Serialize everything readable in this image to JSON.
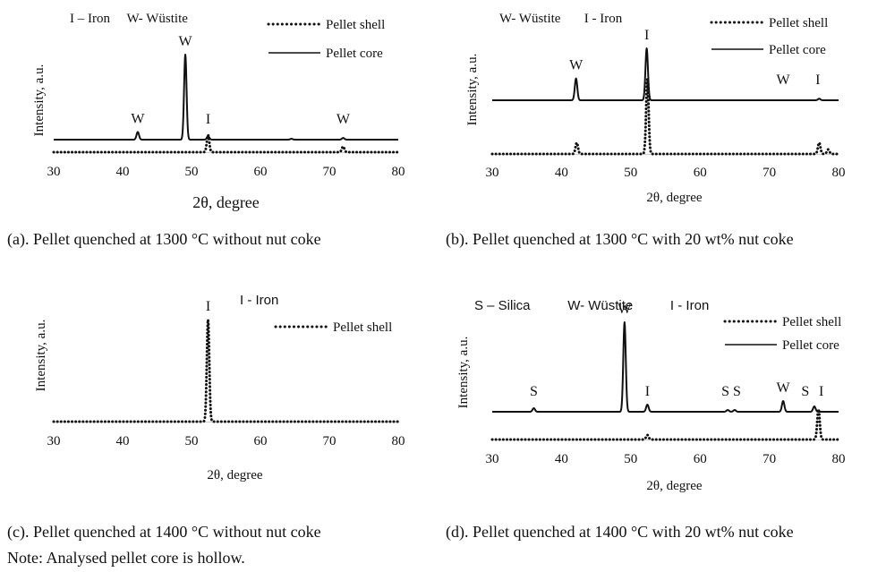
{
  "chart_data": [
    {
      "type": "line",
      "xlim": [
        30,
        80
      ],
      "xticks": [
        "30",
        "40",
        "50",
        "60",
        "70",
        "80"
      ],
      "xlabel": "2θ, degree",
      "ylabel": "Intensity, a.u.",
      "legend_text": "I – Iron     W- Wüstite",
      "legend": [
        "Pellet shell",
        "Pellet core"
      ],
      "legend_position": "top-right",
      "caption": "(a). Pellet quenched at 1300 °C without nut coke",
      "series": [
        {
          "name": "Pellet shell",
          "style": "dotted",
          "peaks": [
            {
              "x": 52.4,
              "h": 0.12
            },
            {
              "x": 72.0,
              "h": 0.04
            }
          ]
        },
        {
          "name": "Pellet core",
          "style": "solid",
          "peaks": [
            {
              "x": 42.2,
              "h": 0.09
            },
            {
              "x": 49.1,
              "h": 1.0
            },
            {
              "x": 52.4,
              "h": 0.04
            },
            {
              "x": 64.5,
              "h": 0.01
            },
            {
              "x": 72.0,
              "h": 0.02
            }
          ]
        }
      ],
      "annotations": [
        {
          "text": "W",
          "x": 42.2
        },
        {
          "text": "W",
          "x": 49.1
        },
        {
          "text": "I",
          "x": 52.4
        },
        {
          "text": "W",
          "x": 72.0
        }
      ]
    },
    {
      "type": "line",
      "xlim": [
        30,
        80
      ],
      "xticks": [
        "30",
        "40",
        "50",
        "60",
        "70",
        "80"
      ],
      "xlabel": "2θ, degree",
      "ylabel": "Intensity, a.u.",
      "legend_text": "W- Wüstite       I - Iron",
      "legend": [
        "Pellet shell",
        "Pellet core"
      ],
      "legend_position": "top-right",
      "caption": "(b). Pellet quenched at 1300 °C with 20 wt% nut coke",
      "series": [
        {
          "name": "Pellet shell",
          "style": "dotted",
          "peaks": [
            {
              "x": 42.2,
              "h": 0.15
            },
            {
              "x": 52.4,
              "h": 1.0
            },
            {
              "x": 77.2,
              "h": 0.15
            },
            {
              "x": 78.5,
              "h": 0.06
            }
          ]
        },
        {
          "name": "Pellet core",
          "style": "solid",
          "peaks": [
            {
              "x": 42.1,
              "h": 0.42
            },
            {
              "x": 52.3,
              "h": 1.0
            },
            {
              "x": 77.2,
              "h": 0.03
            }
          ]
        }
      ],
      "annotations": [
        {
          "text": "W",
          "x": 42.1
        },
        {
          "text": "I",
          "x": 52.3
        },
        {
          "text": "W",
          "x": 72.0
        },
        {
          "text": "I",
          "x": 77.0
        }
      ]
    },
    {
      "type": "line",
      "xlim": [
        30,
        80
      ],
      "xticks": [
        "30",
        "40",
        "50",
        "60",
        "70",
        "80"
      ],
      "xlabel": "2θ, degree",
      "ylabel": "Intensity, a.u.",
      "legend_text": "I - Iron",
      "legend": [
        "Pellet shell"
      ],
      "legend_position": "top-right",
      "caption": "(c). Pellet quenched at 1400 °C without nut coke",
      "series": [
        {
          "name": "Pellet shell",
          "style": "dotted",
          "peaks": [
            {
              "x": 52.4,
              "h": 1.0
            }
          ]
        }
      ],
      "annotations": [
        {
          "text": "I",
          "x": 52.4
        }
      ]
    },
    {
      "type": "line",
      "xlim": [
        30,
        80
      ],
      "xticks": [
        "30",
        "40",
        "50",
        "60",
        "70",
        "80"
      ],
      "xlabel": "2θ, degree",
      "ylabel": "Intensity, a.u.",
      "legend_text": "S – Silica          W- Wüstite          I - Iron",
      "legend": [
        "Pellet shell",
        "Pellet core"
      ],
      "legend_position": "top-right",
      "caption": "(d). Pellet quenched at 1400 °C with 20 wt% nut coke",
      "series": [
        {
          "name": "Pellet shell",
          "style": "dotted",
          "peaks": [
            {
              "x": 52.4,
              "h": 0.15
            },
            {
              "x": 77.1,
              "h": 1.0
            }
          ]
        },
        {
          "name": "Pellet core",
          "style": "solid",
          "peaks": [
            {
              "x": 36.0,
              "h": 0.04
            },
            {
              "x": 49.1,
              "h": 1.0
            },
            {
              "x": 52.4,
              "h": 0.08
            },
            {
              "x": 64.0,
              "h": 0.02
            },
            {
              "x": 65.0,
              "h": 0.02
            },
            {
              "x": 72.0,
              "h": 0.12
            },
            {
              "x": 76.5,
              "h": 0.06
            }
          ]
        }
      ],
      "annotations": [
        {
          "text": "S",
          "x": 36.0
        },
        {
          "text": "W",
          "x": 49.1
        },
        {
          "text": "I",
          "x": 52.4
        },
        {
          "text": "S S",
          "x": 64.5
        },
        {
          "text": "W",
          "x": 72.0
        },
        {
          "text": "S",
          "x": 75.2
        },
        {
          "text": "I",
          "x": 77.5
        }
      ]
    }
  ],
  "note": "Note: Analysed pellet core is hollow."
}
